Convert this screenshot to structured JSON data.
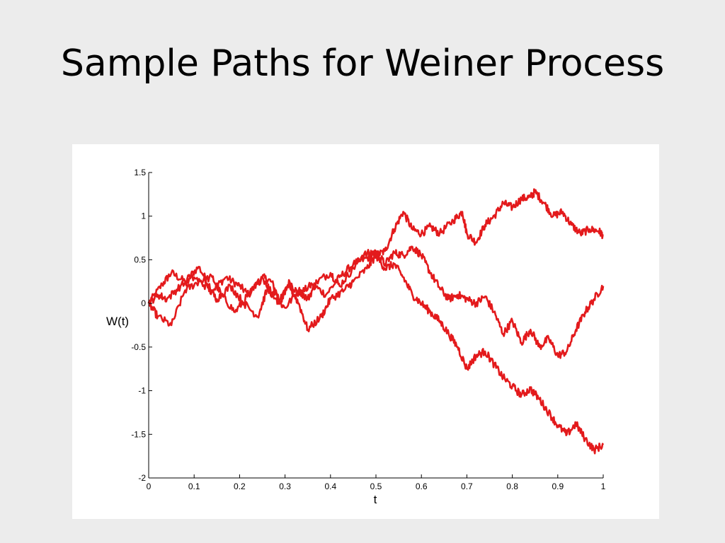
{
  "slide": {
    "title": "Sample Paths for Weiner Process"
  },
  "chart_data": {
    "type": "line",
    "title": "",
    "xlabel": "t",
    "ylabel": "W(t)",
    "xlim": [
      0,
      1
    ],
    "ylim": [
      -2,
      1.5
    ],
    "grid": false,
    "legend": "none",
    "line_color": "#e31a1c",
    "xticks": [
      0,
      0.1,
      0.2,
      0.3,
      0.4,
      0.5,
      0.6,
      0.7,
      0.8,
      0.9,
      1
    ],
    "xtick_labels": [
      "0",
      "0.1",
      "0.2",
      "0.3",
      "0.4",
      "0.5",
      "0.6",
      "0.7",
      "0.8",
      "0.9",
      "1"
    ],
    "yticks": [
      1.5,
      1,
      0.5,
      0,
      -0.5,
      -1,
      -1.5,
      -2
    ],
    "ytick_labels": [
      "1.5",
      "1",
      "0.5",
      "0",
      "-0.5",
      "-1",
      "-1.5",
      "-2"
    ],
    "series": [
      {
        "x": [
          0,
          0.03,
          0.05,
          0.08,
          0.11,
          0.14,
          0.17,
          0.2,
          0.22,
          0.25,
          0.27,
          0.29,
          0.31,
          0.33,
          0.36,
          0.39,
          0.42,
          0.45,
          0.48,
          0.5,
          0.52,
          0.54,
          0.56,
          0.58,
          0.6,
          0.62,
          0.64,
          0.67,
          0.69,
          0.7,
          0.72,
          0.74,
          0.76,
          0.78,
          0.8,
          0.82,
          0.84,
          0.85,
          0.87,
          0.89,
          0.91,
          0.93,
          0.95,
          0.97,
          0.99,
          1
        ],
        "y": [
          0,
          0.22,
          0.35,
          0.25,
          0.42,
          0.15,
          0.3,
          0.2,
          0.1,
          0.3,
          0.25,
          0.02,
          0.25,
          0.1,
          0.22,
          0.1,
          0.3,
          0.45,
          0.52,
          0.55,
          0.6,
          0.85,
          1.05,
          0.85,
          0.8,
          0.88,
          0.8,
          0.95,
          1.05,
          0.8,
          0.7,
          0.9,
          1.0,
          1.15,
          1.1,
          1.2,
          1.22,
          1.28,
          1.15,
          1.0,
          1.05,
          0.9,
          0.8,
          0.85,
          0.83,
          0.78
        ]
      },
      {
        "x": [
          0,
          0.02,
          0.05,
          0.08,
          0.11,
          0.14,
          0.16,
          0.19,
          0.22,
          0.25,
          0.28,
          0.3,
          0.33,
          0.35,
          0.37,
          0.4,
          0.42,
          0.45,
          0.47,
          0.5,
          0.52,
          0.54,
          0.56,
          0.58,
          0.6,
          0.62,
          0.64,
          0.66,
          0.68,
          0.7,
          0.72,
          0.74,
          0.76,
          0.78,
          0.8,
          0.82,
          0.84,
          0.86,
          0.88,
          0.9,
          0.92,
          0.94,
          0.96,
          0.98,
          1
        ],
        "y": [
          0,
          -0.15,
          -0.25,
          0.15,
          0.25,
          0.3,
          0.1,
          -0.1,
          0.1,
          0.3,
          0.05,
          -0.05,
          0.15,
          0.05,
          0.25,
          0.35,
          0.2,
          0.4,
          0.55,
          0.6,
          0.45,
          0.58,
          0.55,
          0.65,
          0.55,
          0.35,
          0.18,
          0.05,
          0.1,
          0.05,
          0.0,
          0.08,
          -0.1,
          -0.35,
          -0.2,
          -0.45,
          -0.3,
          -0.5,
          -0.4,
          -0.6,
          -0.55,
          -0.3,
          -0.1,
          0.05,
          0.2
        ]
      },
      {
        "x": [
          0,
          0.02,
          0.04,
          0.07,
          0.1,
          0.13,
          0.15,
          0.18,
          0.21,
          0.24,
          0.26,
          0.29,
          0.31,
          0.33,
          0.35,
          0.38,
          0.4,
          0.43,
          0.45,
          0.48,
          0.5,
          0.52,
          0.54,
          0.56,
          0.58,
          0.6,
          0.62,
          0.64,
          0.66,
          0.68,
          0.7,
          0.72,
          0.74,
          0.76,
          0.78,
          0.8,
          0.82,
          0.84,
          0.86,
          0.88,
          0.9,
          0.92,
          0.94,
          0.96,
          0.98,
          1
        ],
        "y": [
          0,
          0.1,
          0.05,
          0.2,
          0.3,
          0.18,
          0.05,
          0.2,
          0.0,
          -0.15,
          0.15,
          0.05,
          0.2,
          0.0,
          -0.3,
          -0.15,
          0.05,
          0.15,
          0.25,
          0.4,
          0.55,
          0.4,
          0.45,
          0.3,
          0.1,
          0.0,
          -0.1,
          -0.2,
          -0.35,
          -0.5,
          -0.75,
          -0.6,
          -0.55,
          -0.7,
          -0.85,
          -0.95,
          -1.05,
          -0.98,
          -1.1,
          -1.25,
          -1.4,
          -1.5,
          -1.38,
          -1.55,
          -1.68,
          -1.62
        ]
      }
    ]
  }
}
